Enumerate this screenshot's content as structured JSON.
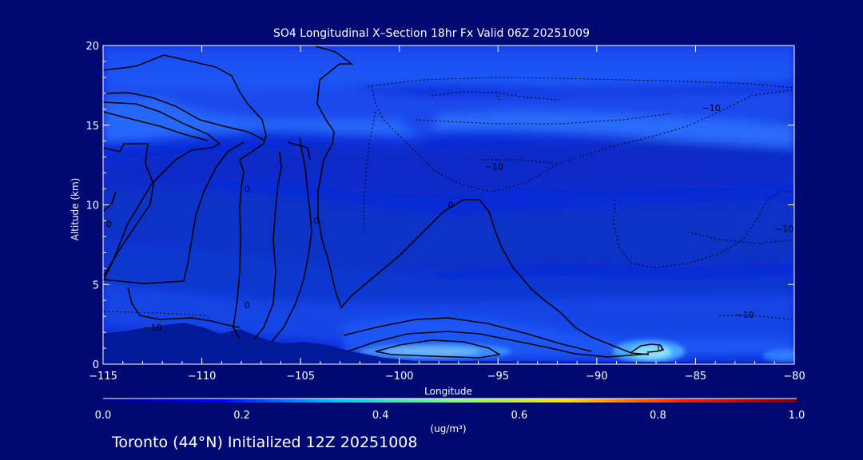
{
  "chart_data": {
    "type": "heatmap",
    "title": "SO4 Longitudinal X–Section 18hr  Fx Valid 06Z 20251009",
    "xlabel": "Longitude",
    "ylabel": "Altitude (km)",
    "xlim": [
      -115,
      -80
    ],
    "ylim": [
      0,
      20
    ],
    "x_ticks": [
      "−115",
      "−110",
      "−105",
      "−100",
      "−95",
      "−90",
      "−85",
      "−80"
    ],
    "x_tick_values": [
      -115,
      -110,
      -105,
      -100,
      -95,
      -90,
      -85,
      -80
    ],
    "y_ticks": [
      "0",
      "5",
      "10",
      "15",
      "20"
    ],
    "y_tick_values": [
      0,
      5,
      10,
      15,
      20
    ],
    "colorbar": {
      "ticks": [
        "0.0",
        "0.2",
        "0.4",
        "0.6",
        "0.8",
        "1.0"
      ],
      "tick_values": [
        0.0,
        0.2,
        0.4,
        0.6,
        0.8,
        1.0
      ],
      "units": "(ug/m³)",
      "colors": [
        "#000080",
        "#0000ff",
        "#00c8ff",
        "#7dff7d",
        "#ffe000",
        "#ff2000",
        "#800000"
      ]
    },
    "contour_labels": [
      {
        "text": "−10",
        "lon": -84.2,
        "alt": 16.1
      },
      {
        "text": "−10",
        "lon": -95.2,
        "alt": 12.4
      },
      {
        "text": "−10",
        "lon": -82.5,
        "alt": 3.1
      },
      {
        "text": "−10",
        "lon": -80.5,
        "alt": 8.5
      },
      {
        "text": "−10",
        "lon": -112.5,
        "alt": 2.3
      },
      {
        "text": "0",
        "lon": -97.4,
        "alt": 10.0
      },
      {
        "text": "0",
        "lon": -104.2,
        "alt": 9.0
      },
      {
        "text": "0",
        "lon": -107.7,
        "alt": 11.0
      },
      {
        "text": "0",
        "lon": -107.7,
        "alt": 3.7
      },
      {
        "text": "0",
        "lon": -114.7,
        "alt": 8.8
      },
      {
        "text": "0",
        "lon": -86.8,
        "alt": 1.0
      }
    ],
    "concentration_maxima": [
      {
        "lon": -87.0,
        "alt": 0.7,
        "value": 0.32
      },
      {
        "lon": -98.0,
        "alt": 0.9,
        "value": 0.22
      },
      {
        "lon": -113.0,
        "alt": 15.3,
        "value": 0.16
      },
      {
        "lon": -92.5,
        "alt": 15.0,
        "value": 0.12
      }
    ],
    "grid": false
  },
  "footer": {
    "station_text": "Toronto (44°N) Initialized 12Z 20251008"
  }
}
